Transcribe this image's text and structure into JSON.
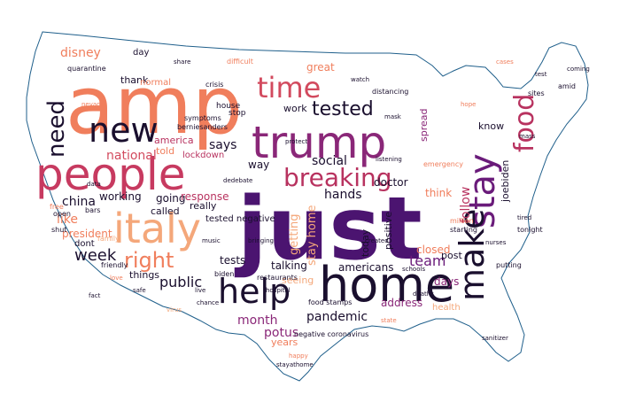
{
  "palette": {
    "outline": "#1f5f8b",
    "deep_purple": "#4b1470",
    "purple": "#6a1b7a",
    "magenta": "#8a2778",
    "crimson": "#b8325f",
    "rose": "#d24a5e",
    "salmon": "#f07e5c",
    "peach": "#f4a77a",
    "navy": "#1a0f2e"
  },
  "words": {
    "just": "just",
    "amp": "amp",
    "people": "people",
    "home": "home",
    "trump": "trump",
    "italy": "italy",
    "new": "new",
    "help": "help",
    "make": "make",
    "stay": "stay",
    "food": "food",
    "breaking": "breaking",
    "time": "time",
    "tested": "tested",
    "need": "need",
    "right": "right",
    "week": "week",
    "national": "national",
    "public": "public",
    "china": "china",
    "like": "like",
    "disney": "disney",
    "president": "president",
    "team": "team",
    "pandemic": "pandemic",
    "potus": "potus",
    "month": "month",
    "says": "says",
    "social": "social",
    "hands": "hands",
    "follow": "follow",
    "closed": "closed",
    "getting": "getting",
    "stay_home": "stay home",
    "americans": "americans",
    "talking": "talking",
    "address": "address",
    "days": "days",
    "working": "working",
    "going": "going",
    "called": "called",
    "response": "response",
    "really": "really",
    "tests": "tests",
    "things": "things",
    "dont": "dont",
    "years": "years",
    "great": "great",
    "work": "work",
    "way": "way",
    "doctor": "doctor",
    "think": "think",
    "positive": "positive",
    "today": "today",
    "post": "post",
    "joebiden": "joebiden",
    "know": "know",
    "spread": "spread",
    "america": "america",
    "told": "told",
    "lockdown": "lockdown",
    "thank": "thank",
    "normal": "normal",
    "day": "day",
    "seeing": "seeing",
    "health": "health",
    "tested_negative": "tested negative",
    "stop": "stop",
    "crisis": "crisis",
    "house": "house",
    "difficult": "difficult",
    "distancing": "distancing",
    "amid": "amid",
    "tonight": "tonight",
    "million": "million",
    "starting": "starting",
    "emergency": "emergency",
    "biden": "biden",
    "sites": "sites",
    "restaurants": "restaurants",
    "food_stamps": "food stamps",
    "negative_coronavirus": "negative coronavirus",
    "bringing": "bringing",
    "family": "family",
    "shut": "shut",
    "bars": "bars",
    "free": "free",
    "open": "open",
    "symptoms": "symptoms",
    "berniesanders": "berniesanders",
    "quarantine": "quarantine",
    "music": "music",
    "friendly": "friendly",
    "putting": "putting",
    "tired": "tired",
    "schools": "schools",
    "mass": "mass",
    "data": "data",
    "nevada": "nevada",
    "happy": "happy",
    "sanitizer": "sanitizer",
    "created": "created",
    "listening": "listening",
    "protect": "protect",
    "dedebate": "dedebate",
    "stayathome": "stayathome",
    "cases": "cases",
    "coming": "coming",
    "fact": "fact",
    "share": "share",
    "watch": "watch",
    "hope": "hope",
    "mask": "mask",
    "safe": "safe",
    "live": "live",
    "test": "test",
    "deaths": "deaths",
    "state": "state",
    "nurses": "nurses",
    "love": "love",
    "hospital": "hospital",
    "chance": "chance",
    "virus": "virus"
  }
}
